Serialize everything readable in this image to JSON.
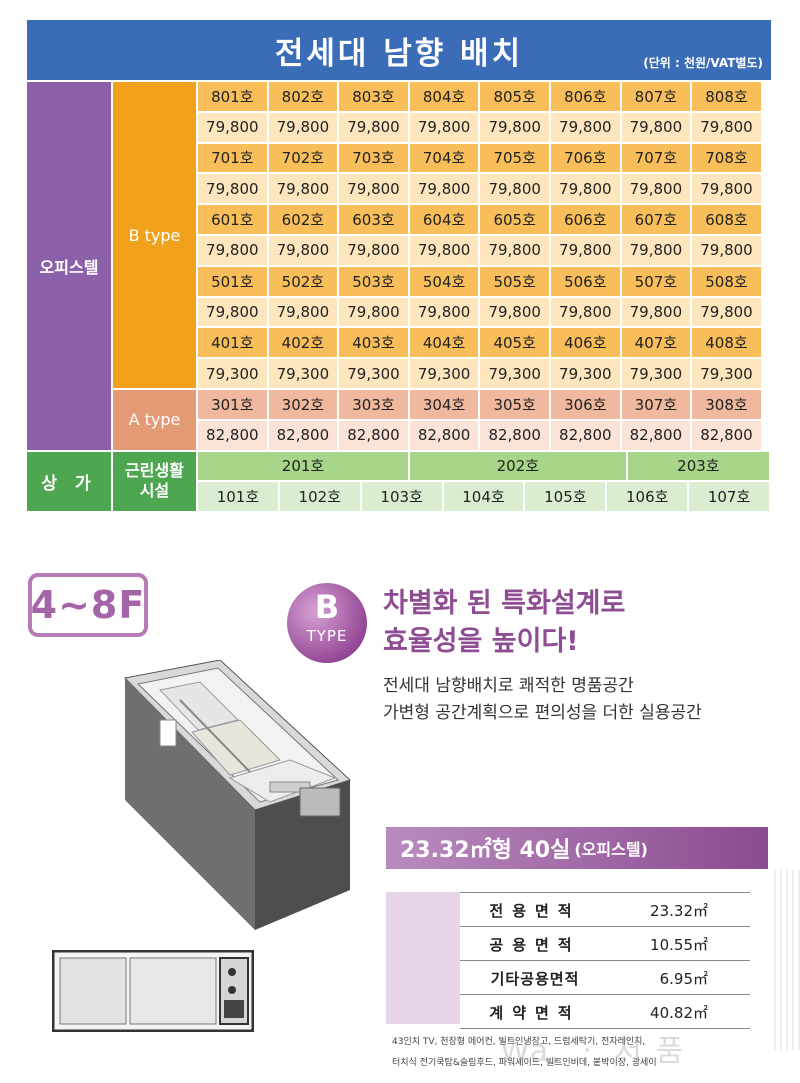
{
  "table": {
    "title": "전세대 남향 배치",
    "unit_note": "(단위 : 천원/VAT별도)",
    "labels": {
      "office": "오피스텔",
      "btype": "B type",
      "atype": "A type",
      "shop": "상 가",
      "neighborhood": "근린생활\n시설"
    },
    "rows": [
      {
        "kind": "b-unit",
        "cells": [
          "801호",
          "802호",
          "803호",
          "804호",
          "805호",
          "806호",
          "807호",
          "808호"
        ]
      },
      {
        "kind": "b-price",
        "cells": [
          "79,800",
          "79,800",
          "79,800",
          "79,800",
          "79,800",
          "79,800",
          "79,800",
          "79,800"
        ]
      },
      {
        "kind": "b-unit",
        "cells": [
          "701호",
          "702호",
          "703호",
          "704호",
          "705호",
          "706호",
          "707호",
          "708호"
        ]
      },
      {
        "kind": "b-price",
        "cells": [
          "79,800",
          "79,800",
          "79,800",
          "79,800",
          "79,800",
          "79,800",
          "79,800",
          "79,800"
        ]
      },
      {
        "kind": "b-unit",
        "cells": [
          "601호",
          "602호",
          "603호",
          "604호",
          "605호",
          "606호",
          "607호",
          "608호"
        ]
      },
      {
        "kind": "b-price",
        "cells": [
          "79,800",
          "79,800",
          "79,800",
          "79,800",
          "79,800",
          "79,800",
          "79,800",
          "79,800"
        ]
      },
      {
        "kind": "b-unit",
        "cells": [
          "501호",
          "502호",
          "503호",
          "504호",
          "505호",
          "506호",
          "507호",
          "508호"
        ]
      },
      {
        "kind": "b-price",
        "cells": [
          "79,800",
          "79,800",
          "79,800",
          "79,800",
          "79,800",
          "79,800",
          "79,800",
          "79,800"
        ]
      },
      {
        "kind": "b-unit",
        "cells": [
          "401호",
          "402호",
          "403호",
          "404호",
          "405호",
          "406호",
          "407호",
          "408호"
        ]
      },
      {
        "kind": "b-price",
        "cells": [
          "79,300",
          "79,300",
          "79,300",
          "79,300",
          "79,300",
          "79,300",
          "79,300",
          "79,300"
        ]
      },
      {
        "kind": "a-unit",
        "cells": [
          "301호",
          "302호",
          "303호",
          "304호",
          "305호",
          "306호",
          "307호",
          "308호"
        ]
      },
      {
        "kind": "a-price",
        "cells": [
          "82,800",
          "82,800",
          "82,800",
          "82,800",
          "82,800",
          "82,800",
          "82,800",
          "82,800"
        ]
      }
    ],
    "shop_row_top": [
      "201호",
      "202호",
      "203호"
    ],
    "shop_row_bottom": [
      "101호",
      "102호",
      "103호",
      "104호",
      "105호",
      "106호",
      "107호"
    ]
  },
  "promo": {
    "floor_badge": "4~8F",
    "type_letter": "B",
    "type_word": "TYPE",
    "headline_1": "차별화 된 특화설계로",
    "headline_2": "효율성을 높이다!",
    "desc_1": "전세대 남향배치로 쾌적한 명품공간",
    "desc_2": "가변형 공간계획으로 편의성을 더한 실용공간",
    "size_main": "23.32㎡형 40실",
    "size_sub": "(오피스텔)",
    "specs": [
      {
        "k": "전용면적",
        "v": "23.32㎡"
      },
      {
        "k": "공용면적",
        "v": "10.55㎡"
      },
      {
        "k": "기타공용면적",
        "v": "6.95㎡"
      },
      {
        "k": "계약면적",
        "v": "40.82㎡"
      }
    ],
    "note_1": "43인치 TV, 천장형 에어컨, 빌트인냉장고, 드럼세탁기, 전자레인지,",
    "note_2": "터치식 전기쿡탑&슬림후드, 파워셰이드, 빌트인비데, 붙박이장, 광세이",
    "watermark": "Wa,  ㆍ 저 품"
  },
  "colors": {
    "header_blue": "#3a6cb8",
    "office_purple": "#8b60a8",
    "btype_orange": "#f1a11c",
    "atype_salmon": "#e39a75",
    "shop_green": "#4fa651",
    "brand_purple": "#8e4c93"
  },
  "icons": [
    "floor-plan-3d-illustration",
    "floor-plan-2d-illustration"
  ]
}
